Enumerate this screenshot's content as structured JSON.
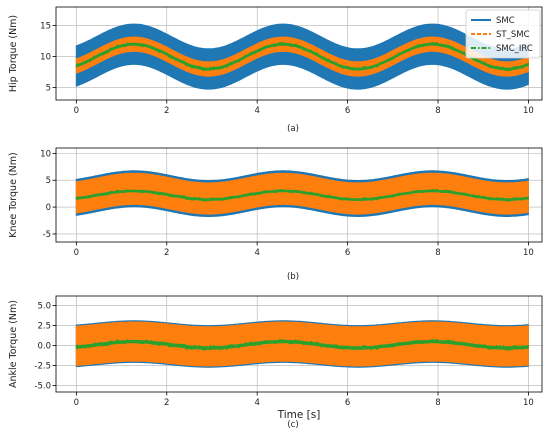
{
  "chart_data": [
    {
      "type": "line",
      "panel_label": "(a)",
      "ylabel": "Hip Torque (Nm)",
      "xlabel": "",
      "xlim": [
        -0.45,
        10.3
      ],
      "ylim": [
        3,
        18
      ],
      "xticks": [
        0,
        2,
        4,
        6,
        8,
        10
      ],
      "yticks": [
        5,
        10,
        15
      ],
      "grid": true,
      "legend": {
        "placement": "top-right",
        "entries": [
          "SMC",
          "ST_SMC",
          "SMC_IRC"
        ]
      },
      "period_s": 3.3,
      "series": [
        {
          "name": "SMC",
          "style": "solid",
          "color": "#1f77b4",
          "center": 10.0,
          "amplitude": 2.0,
          "band": 6.5
        },
        {
          "name": "ST_SMC",
          "style": "dashed",
          "color": "#ff7f0e",
          "center": 10.0,
          "amplitude": 2.0,
          "band": 2.3
        },
        {
          "name": "SMC_IRC",
          "style": "dashdot",
          "color": "#2ca02c",
          "center": 10.0,
          "amplitude": 2.0,
          "band": 0.3
        }
      ]
    },
    {
      "type": "line",
      "panel_label": "(b)",
      "ylabel": "Knee Torque (Nm)",
      "xlabel": "",
      "xlim": [
        -0.45,
        10.3
      ],
      "ylim": [
        -6.5,
        11
      ],
      "xticks": [
        0,
        2,
        4,
        6,
        8,
        10
      ],
      "yticks": [
        -5,
        0,
        5,
        10
      ],
      "grid": true,
      "period_s": 3.3,
      "series": [
        {
          "name": "SMC",
          "style": "solid",
          "color": "#1f77b4",
          "center": 2.5,
          "amplitude": 0.9,
          "band": 6.7
        },
        {
          "name": "ST_SMC",
          "style": "dashed",
          "color": "#ff7f0e",
          "center": 2.5,
          "amplitude": 0.9,
          "band": 5.8
        },
        {
          "name": "SMC_IRC",
          "style": "dashdot",
          "color": "#2ca02c",
          "center": 2.2,
          "amplitude": 0.8,
          "band": 0.3
        }
      ]
    },
    {
      "type": "line",
      "panel_label": "(c)",
      "ylabel": "Ankle Torque (Nm)",
      "xlabel": "Time [s]",
      "xlim": [
        -0.45,
        10.3
      ],
      "ylim": [
        -5.8,
        6.2
      ],
      "xticks": [
        0,
        2,
        4,
        6,
        8,
        10
      ],
      "yticks": [
        -5.0,
        -2.5,
        0.0,
        2.5,
        5.0
      ],
      "grid": true,
      "period_s": 3.3,
      "series": [
        {
          "name": "SMC",
          "style": "solid",
          "color": "#1f77b4",
          "center": 0.2,
          "amplitude": 0.3,
          "band": 5.2
        },
        {
          "name": "ST_SMC",
          "style": "dashed",
          "color": "#ff7f0e",
          "center": 0.2,
          "amplitude": 0.3,
          "band": 4.9
        },
        {
          "name": "SMC_IRC",
          "style": "dashdot",
          "color": "#2ca02c",
          "center": 0.1,
          "amplitude": 0.4,
          "band": 0.3
        }
      ]
    }
  ]
}
